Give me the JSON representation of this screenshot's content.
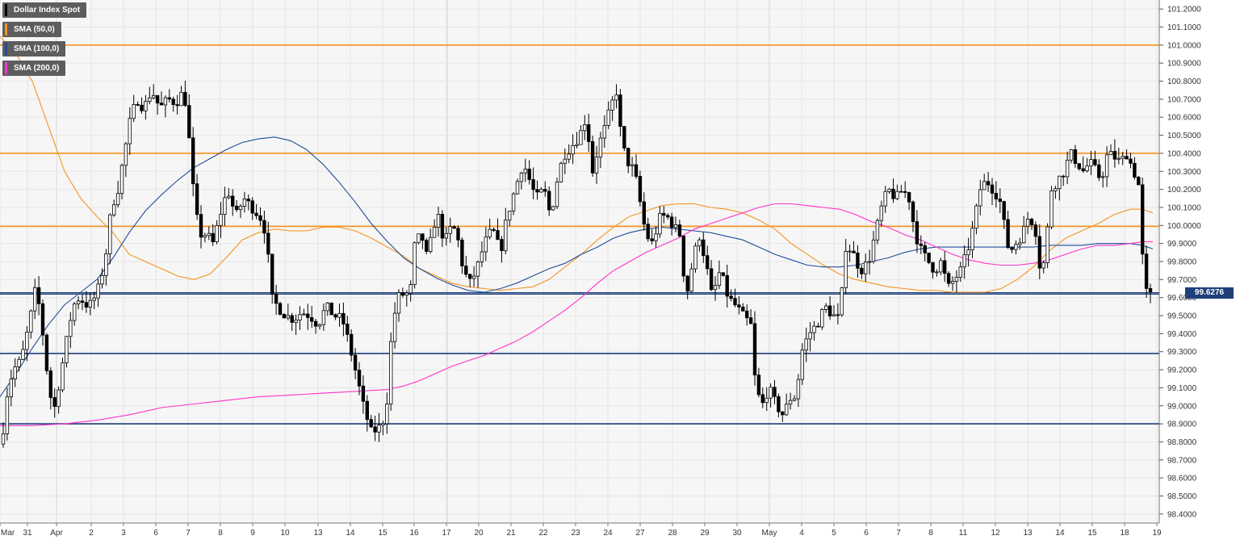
{
  "chart_data": {
    "type": "candlestick",
    "instrument": "Dollar Index Spot",
    "legend": [
      {
        "label": "Dollar Index Spot",
        "color": "#000000"
      },
      {
        "label": "SMA (50,0)",
        "color": "#f7931e"
      },
      {
        "label": "SMA (100,0)",
        "color": "#1f4e99"
      },
      {
        "label": "SMA (200,0)",
        "color": "#ff33cc"
      }
    ],
    "current_price": "99.6276",
    "ylim": [
      98.35,
      101.25
    ],
    "y_ticks": [
      "98.4000",
      "98.5000",
      "98.6000",
      "98.7000",
      "98.8000",
      "98.9000",
      "99.0000",
      "99.1000",
      "99.2000",
      "99.3000",
      "99.4000",
      "99.5000",
      "99.6000",
      "99.7000",
      "99.8000",
      "99.9000",
      "100.0000",
      "100.1000",
      "100.2000",
      "100.3000",
      "100.4000",
      "100.5000",
      "100.6000",
      "100.7000",
      "100.8000",
      "100.9000",
      "101.0000",
      "101.1000",
      "101.2000"
    ],
    "x_ticks": [
      "Mar",
      "31",
      "Apr",
      "2",
      "3",
      "6",
      "7",
      "8",
      "9",
      "10",
      "13",
      "14",
      "15",
      "16",
      "17",
      "20",
      "21",
      "22",
      "23",
      "24",
      "27",
      "28",
      "29",
      "30",
      "May",
      "4",
      "5",
      "6",
      "7",
      "8",
      "11",
      "12",
      "13",
      "14",
      "15",
      "18",
      "19"
    ],
    "resistance_levels": [
      101.0,
      100.4,
      99.995
    ],
    "support_levels": [
      99.62,
      99.29,
      98.9
    ],
    "colors": {
      "resistance": "#f7931e",
      "support": "#1f3f7a",
      "up_candle": "#ffffff",
      "down_candle": "#000000"
    },
    "series": [
      {
        "name": "SMA (50,0)",
        "color": "#f7931e",
        "path": [
          [
            0,
            101.05
          ],
          [
            20,
            100.95
          ],
          [
            40,
            100.8
          ],
          [
            60,
            100.55
          ],
          [
            80,
            100.3
          ],
          [
            100,
            100.15
          ],
          [
            120,
            100.05
          ],
          [
            140,
            99.96
          ],
          [
            160,
            99.84
          ],
          [
            180,
            99.8
          ],
          [
            200,
            99.76
          ],
          [
            220,
            99.72
          ],
          [
            240,
            99.7
          ],
          [
            260,
            99.73
          ],
          [
            280,
            99.82
          ],
          [
            300,
            99.92
          ],
          [
            320,
            99.96
          ],
          [
            340,
            99.98
          ],
          [
            360,
            99.97
          ],
          [
            380,
            99.97
          ],
          [
            400,
            99.99
          ],
          [
            420,
            99.99
          ],
          [
            440,
            99.97
          ],
          [
            460,
            99.93
          ],
          [
            480,
            99.88
          ],
          [
            500,
            99.83
          ],
          [
            520,
            99.76
          ],
          [
            540,
            99.72
          ],
          [
            560,
            99.68
          ],
          [
            580,
            99.66
          ],
          [
            600,
            99.65
          ],
          [
            620,
            99.64
          ],
          [
            640,
            99.65
          ],
          [
            660,
            99.66
          ],
          [
            680,
            99.7
          ],
          [
            700,
            99.77
          ],
          [
            720,
            99.84
          ],
          [
            740,
            99.92
          ],
          [
            760,
            99.99
          ],
          [
            780,
            100.05
          ],
          [
            800,
            100.08
          ],
          [
            820,
            100.11
          ],
          [
            840,
            100.12
          ],
          [
            860,
            100.12
          ],
          [
            880,
            100.1
          ],
          [
            900,
            100.09
          ],
          [
            920,
            100.07
          ],
          [
            940,
            100.03
          ],
          [
            960,
            99.98
          ],
          [
            980,
            99.9
          ],
          [
            1000,
            99.84
          ],
          [
            1020,
            99.78
          ],
          [
            1040,
            99.73
          ],
          [
            1060,
            99.7
          ],
          [
            1080,
            99.68
          ],
          [
            1100,
            99.66
          ],
          [
            1120,
            99.65
          ],
          [
            1140,
            99.64
          ],
          [
            1160,
            99.64
          ],
          [
            1180,
            99.63
          ],
          [
            1200,
            99.63
          ],
          [
            1220,
            99.63
          ],
          [
            1240,
            99.65
          ],
          [
            1260,
            99.7
          ],
          [
            1280,
            99.77
          ],
          [
            1300,
            99.86
          ],
          [
            1320,
            99.93
          ],
          [
            1340,
            99.97
          ],
          [
            1360,
            100.01
          ],
          [
            1380,
            100.06
          ],
          [
            1400,
            100.09
          ],
          [
            1415,
            100.09
          ],
          [
            1428,
            100.07
          ]
        ]
      },
      {
        "name": "SMA (100,0)",
        "color": "#1f4e99",
        "path": [
          [
            0,
            99.05
          ],
          [
            20,
            99.18
          ],
          [
            40,
            99.32
          ],
          [
            60,
            99.45
          ],
          [
            80,
            99.56
          ],
          [
            100,
            99.63
          ],
          [
            120,
            99.7
          ],
          [
            140,
            99.82
          ],
          [
            160,
            99.96
          ],
          [
            180,
            100.08
          ],
          [
            200,
            100.17
          ],
          [
            220,
            100.25
          ],
          [
            240,
            100.32
          ],
          [
            260,
            100.37
          ],
          [
            280,
            100.42
          ],
          [
            300,
            100.46
          ],
          [
            320,
            100.48
          ],
          [
            340,
            100.49
          ],
          [
            360,
            100.47
          ],
          [
            380,
            100.42
          ],
          [
            400,
            100.34
          ],
          [
            420,
            100.24
          ],
          [
            440,
            100.13
          ],
          [
            460,
            100.01
          ],
          [
            480,
            99.91
          ],
          [
            500,
            99.82
          ],
          [
            520,
            99.76
          ],
          [
            540,
            99.71
          ],
          [
            560,
            99.67
          ],
          [
            580,
            99.64
          ],
          [
            600,
            99.63
          ],
          [
            620,
            99.65
          ],
          [
            640,
            99.68
          ],
          [
            660,
            99.72
          ],
          [
            680,
            99.76
          ],
          [
            700,
            99.79
          ],
          [
            720,
            99.84
          ],
          [
            740,
            99.88
          ],
          [
            760,
            99.93
          ],
          [
            780,
            99.96
          ],
          [
            800,
            99.98
          ],
          [
            820,
            99.99
          ],
          [
            840,
            99.98
          ],
          [
            860,
            99.97
          ],
          [
            880,
            99.96
          ],
          [
            900,
            99.94
          ],
          [
            920,
            99.92
          ],
          [
            940,
            99.88
          ],
          [
            960,
            99.84
          ],
          [
            980,
            99.81
          ],
          [
            1000,
            99.78
          ],
          [
            1020,
            99.77
          ],
          [
            1040,
            99.77
          ],
          [
            1060,
            99.78
          ],
          [
            1080,
            99.8
          ],
          [
            1100,
            99.82
          ],
          [
            1120,
            99.85
          ],
          [
            1140,
            99.87
          ],
          [
            1160,
            99.88
          ],
          [
            1180,
            99.88
          ],
          [
            1200,
            99.88
          ],
          [
            1220,
            99.88
          ],
          [
            1240,
            99.88
          ],
          [
            1260,
            99.88
          ],
          [
            1280,
            99.88
          ],
          [
            1300,
            99.89
          ],
          [
            1320,
            99.89
          ],
          [
            1340,
            99.89
          ],
          [
            1360,
            99.9
          ],
          [
            1380,
            99.9
          ],
          [
            1400,
            99.9
          ],
          [
            1415,
            99.89
          ],
          [
            1428,
            99.87
          ]
        ]
      },
      {
        "name": "SMA (200,0)",
        "color": "#ff33cc",
        "path": [
          [
            0,
            98.89
          ],
          [
            40,
            98.89
          ],
          [
            80,
            98.9
          ],
          [
            120,
            98.92
          ],
          [
            160,
            98.95
          ],
          [
            200,
            98.99
          ],
          [
            240,
            99.01
          ],
          [
            280,
            99.03
          ],
          [
            320,
            99.05
          ],
          [
            360,
            99.06
          ],
          [
            400,
            99.07
          ],
          [
            440,
            99.08
          ],
          [
            480,
            99.09
          ],
          [
            500,
            99.11
          ],
          [
            520,
            99.14
          ],
          [
            540,
            99.18
          ],
          [
            560,
            99.22
          ],
          [
            580,
            99.25
          ],
          [
            600,
            99.28
          ],
          [
            620,
            99.32
          ],
          [
            640,
            99.36
          ],
          [
            660,
            99.41
          ],
          [
            680,
            99.47
          ],
          [
            700,
            99.53
          ],
          [
            720,
            99.6
          ],
          [
            740,
            99.68
          ],
          [
            760,
            99.75
          ],
          [
            780,
            99.8
          ],
          [
            800,
            99.85
          ],
          [
            820,
            99.89
          ],
          [
            840,
            99.93
          ],
          [
            860,
            99.98
          ],
          [
            880,
            100.01
          ],
          [
            900,
            100.04
          ],
          [
            920,
            100.07
          ],
          [
            940,
            100.1
          ],
          [
            960,
            100.12
          ],
          [
            980,
            100.12
          ],
          [
            1000,
            100.11
          ],
          [
            1020,
            100.1
          ],
          [
            1040,
            100.09
          ],
          [
            1060,
            100.06
          ],
          [
            1080,
            100.02
          ],
          [
            1100,
            99.99
          ],
          [
            1120,
            99.95
          ],
          [
            1140,
            99.92
          ],
          [
            1160,
            99.88
          ],
          [
            1180,
            99.84
          ],
          [
            1200,
            99.81
          ],
          [
            1220,
            99.79
          ],
          [
            1240,
            99.78
          ],
          [
            1260,
            99.78
          ],
          [
            1280,
            99.79
          ],
          [
            1300,
            99.81
          ],
          [
            1320,
            99.84
          ],
          [
            1340,
            99.87
          ],
          [
            1360,
            99.89
          ],
          [
            1380,
            99.89
          ],
          [
            1400,
            99.9
          ],
          [
            1415,
            99.91
          ],
          [
            1428,
            99.91
          ]
        ]
      }
    ]
  }
}
